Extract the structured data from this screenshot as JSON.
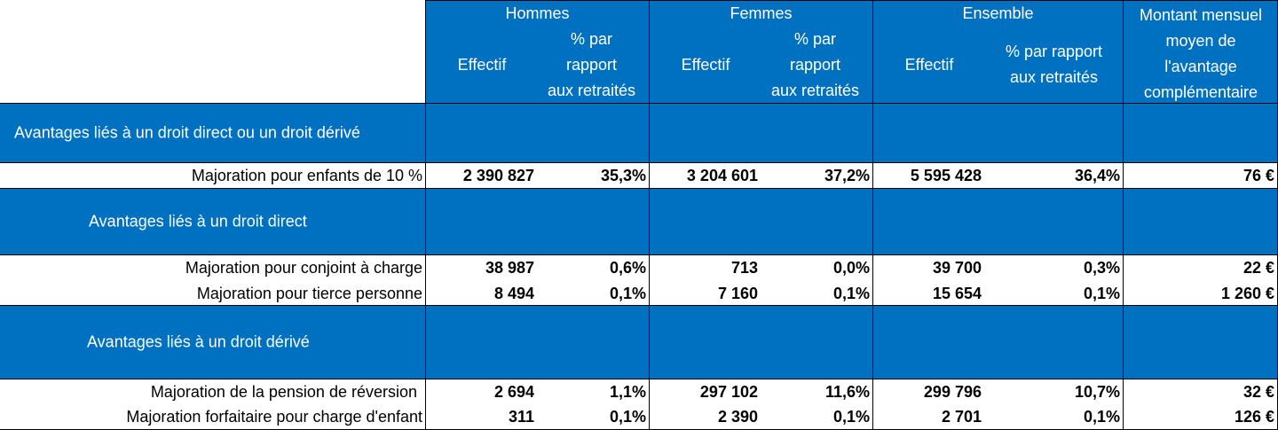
{
  "header": {
    "hommes": "Hommes",
    "femmes": "Femmes",
    "ensemble": "Ensemble",
    "effectif": "Effectif",
    "pct_line1": "% par",
    "pct_line2": "rapport",
    "pct_line3": "aux retraités",
    "pct_ens_line1": "% par rapport",
    "pct_ens_line2": "aux retraités",
    "montant_line1": "Montant mensuel",
    "montant_line2": "moyen de",
    "montant_line3": "l'avantage",
    "montant_line4": "complémentaire"
  },
  "sections": [
    {
      "title": "Avantages liés à un droit direct ou un droit dérivé",
      "rows": [
        {
          "label": "Majoration pour enfants de 10 %",
          "h_eff": "2 390 827",
          "h_pct": "35,3%",
          "f_eff": "3 204 601",
          "f_pct": "37,2%",
          "e_eff": "5 595 428",
          "e_pct": "36,4%",
          "montant": "76 €"
        }
      ]
    },
    {
      "title": "Avantages liés à un droit direct",
      "rows": [
        {
          "label": "Majoration pour conjoint à charge",
          "h_eff": "38 987",
          "h_pct": "0,6%",
          "f_eff": "713",
          "f_pct": "0,0%",
          "e_eff": "39 700",
          "e_pct": "0,3%",
          "montant": "22 €"
        },
        {
          "label": "Majoration pour tierce personne",
          "h_eff": "8 494",
          "h_pct": "0,1%",
          "f_eff": "7 160",
          "f_pct": "0,1%",
          "e_eff": "15 654",
          "e_pct": "0,1%",
          "montant": "1 260 €"
        }
      ]
    },
    {
      "title": "Avantages liés à un droit dérivé",
      "rows": [
        {
          "label": "Majoration de la pension de réversion",
          "h_eff": "2 694",
          "h_pct": "1,1%",
          "f_eff": "297 102",
          "f_pct": "11,6%",
          "e_eff": "299 796",
          "e_pct": "10,7%",
          "montant": "32 €"
        },
        {
          "label": "Majoration forfaitaire pour charge d'enfant",
          "h_eff": "311",
          "h_pct": "0,1%",
          "f_eff": "2 390",
          "f_pct": "0,1%",
          "e_eff": "2 701",
          "e_pct": "0,1%",
          "montant": "126 €"
        }
      ]
    }
  ]
}
